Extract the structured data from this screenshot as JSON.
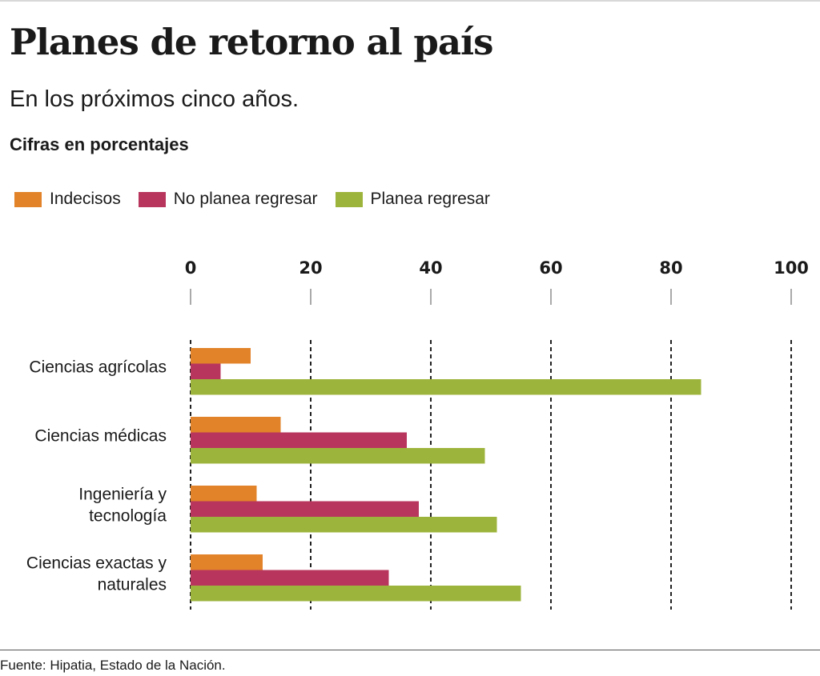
{
  "header": {
    "title": "Planes de retorno al país",
    "subtitle": "En los próximos cinco años.",
    "units": "Cifras en porcentajes"
  },
  "footer": {
    "source": "Fuente: Hipatia, Estado de la Nación."
  },
  "chart_data": {
    "type": "bar",
    "orientation": "horizontal",
    "title": "Planes de retorno al país",
    "subtitle": "En los próximos cinco años.",
    "xlabel": "Cifras en porcentajes",
    "ylabel": "",
    "xlim": [
      0,
      100
    ],
    "xticks": [
      0,
      20,
      40,
      60,
      80,
      100
    ],
    "grid": true,
    "legend_position": "top-left",
    "categories": [
      [
        "Ciencias agrícolas"
      ],
      [
        "Ingeniería y",
        "tecnología"
      ],
      [
        "Ciencias médicas"
      ],
      [
        "Ciencias exactas y",
        "naturales"
      ]
    ],
    "category_order": [
      [
        "Ciencias agrícolas"
      ],
      [
        "Ciencias médicas"
      ],
      [
        "Ingeniería y",
        "tecnología"
      ],
      [
        "Ciencias exactas y",
        "naturales"
      ]
    ],
    "series": [
      {
        "name": "Indecisos",
        "color": "#e2832a",
        "values": [
          10,
          15,
          11,
          12
        ]
      },
      {
        "name": "No planea regresar",
        "color": "#b8355e",
        "values": [
          5,
          36,
          38,
          33
        ]
      },
      {
        "name": "Planea regresar",
        "color": "#9db43c",
        "values": [
          85,
          49,
          51,
          55
        ]
      }
    ]
  }
}
